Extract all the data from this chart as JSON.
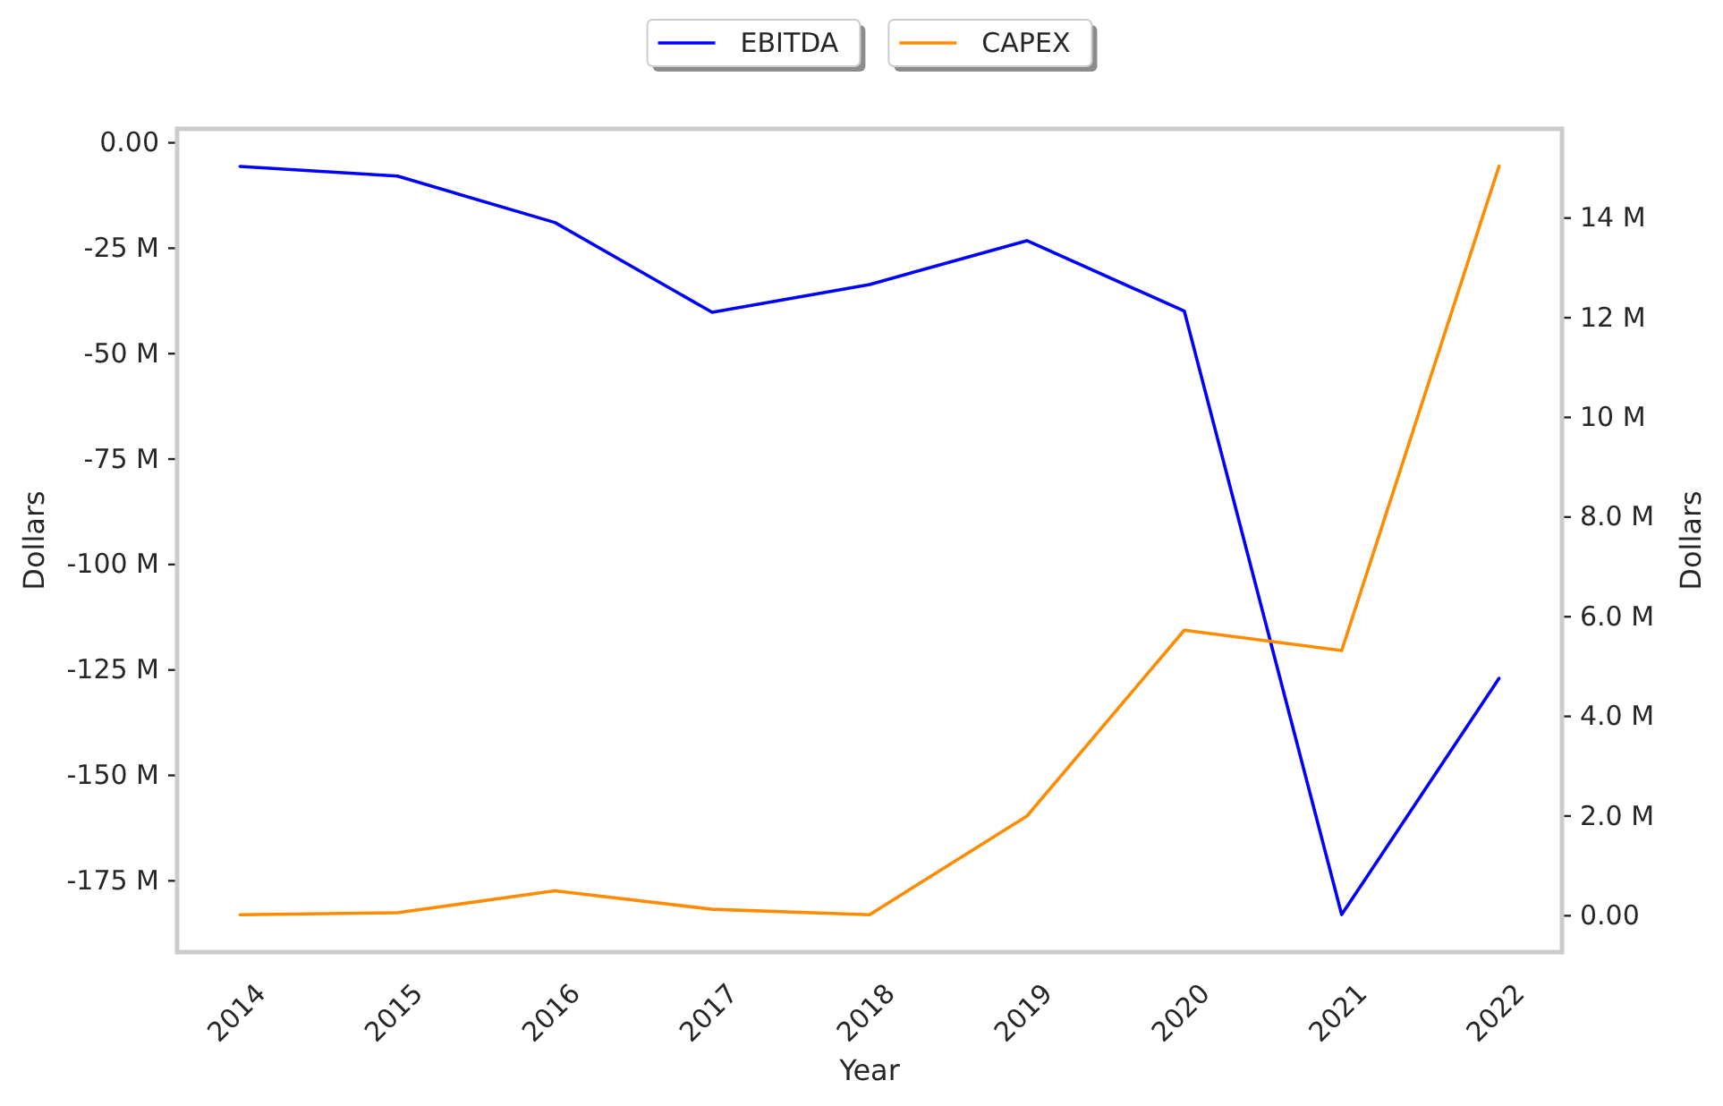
{
  "chart_data": {
    "type": "line",
    "xlabel": "Year",
    "ylabel": "Dollars",
    "y2label": "Dollars",
    "x": [
      2014,
      2015,
      2016,
      2017,
      2018,
      2019,
      2020,
      2021,
      2022
    ],
    "xlim": [
      2013.6,
      2022.4
    ],
    "xticks": [
      2014,
      2015,
      2016,
      2017,
      2018,
      2019,
      2020,
      2021,
      2022
    ],
    "ylim": [
      -191.9,
      3.3
    ],
    "yticks": [
      {
        "value": 0,
        "label": "0.00"
      },
      {
        "value": -25,
        "label": "-25 M"
      },
      {
        "value": -50,
        "label": "-50 M"
      },
      {
        "value": -75,
        "label": "-75 M"
      },
      {
        "value": -100,
        "label": "-100 M"
      },
      {
        "value": -125,
        "label": "-125 M"
      },
      {
        "value": -150,
        "label": "-150 M"
      },
      {
        "value": -175,
        "label": "-175 M"
      }
    ],
    "y2lim": [
      -0.73,
      15.79
    ],
    "y2ticks": [
      {
        "value": 0,
        "label": "0.00"
      },
      {
        "value": 2,
        "label": "2.0 M"
      },
      {
        "value": 4,
        "label": "4.0 M"
      },
      {
        "value": 6,
        "label": "6.0 M"
      },
      {
        "value": 8,
        "label": "8.0 M"
      },
      {
        "value": 10,
        "label": "10 M"
      },
      {
        "value": 12,
        "label": "12 M"
      },
      {
        "value": 14,
        "label": "14 M"
      }
    ],
    "series": [
      {
        "name": "EBITDA",
        "color": "#0000ff",
        "values": [
          -5.6,
          -7.9,
          -18.9,
          -40.2,
          -33.6,
          -23.2,
          -39.9,
          -183.0,
          -127.0
        ]
      },
      {
        "name": "CAPEX",
        "color": "#ff8c00",
        "axis": "y2",
        "values": [
          0.02,
          0.06,
          0.5,
          0.13,
          0.02,
          2.0,
          5.73,
          5.32,
          15.04
        ]
      }
    ],
    "legend": "top",
    "grid": false
  }
}
